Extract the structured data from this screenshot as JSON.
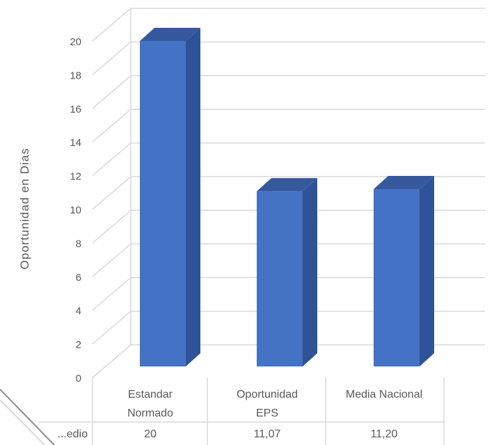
{
  "chart_data": {
    "type": "bar",
    "three_d": true,
    "title": "",
    "ylabel": "Oportunidad en Dias",
    "xlabel": "",
    "ylim": [
      0,
      20
    ],
    "yticks": [
      "0",
      "2",
      "4",
      "6",
      "8",
      "10",
      "12",
      "14",
      "16",
      "18",
      "20"
    ],
    "grid": true,
    "categories": [
      "Estandar Normado",
      "Oportunidad EPS",
      "Media Nacional"
    ],
    "category_lines": [
      [
        "Estandar",
        "Normado"
      ],
      [
        "Oportunidad",
        "EPS"
      ],
      [
        "Media Nacional"
      ]
    ],
    "values": [
      20,
      11.07,
      11.2
    ],
    "data_table": {
      "row_label": "...edio",
      "values": [
        "20",
        "11,07",
        "11,20"
      ]
    },
    "colors": {
      "bar_front": "#4472c4",
      "bar_side": "#2f5396",
      "bar_top": "#36599e",
      "grid": "#d9d9d9",
      "text": "#595959"
    }
  }
}
